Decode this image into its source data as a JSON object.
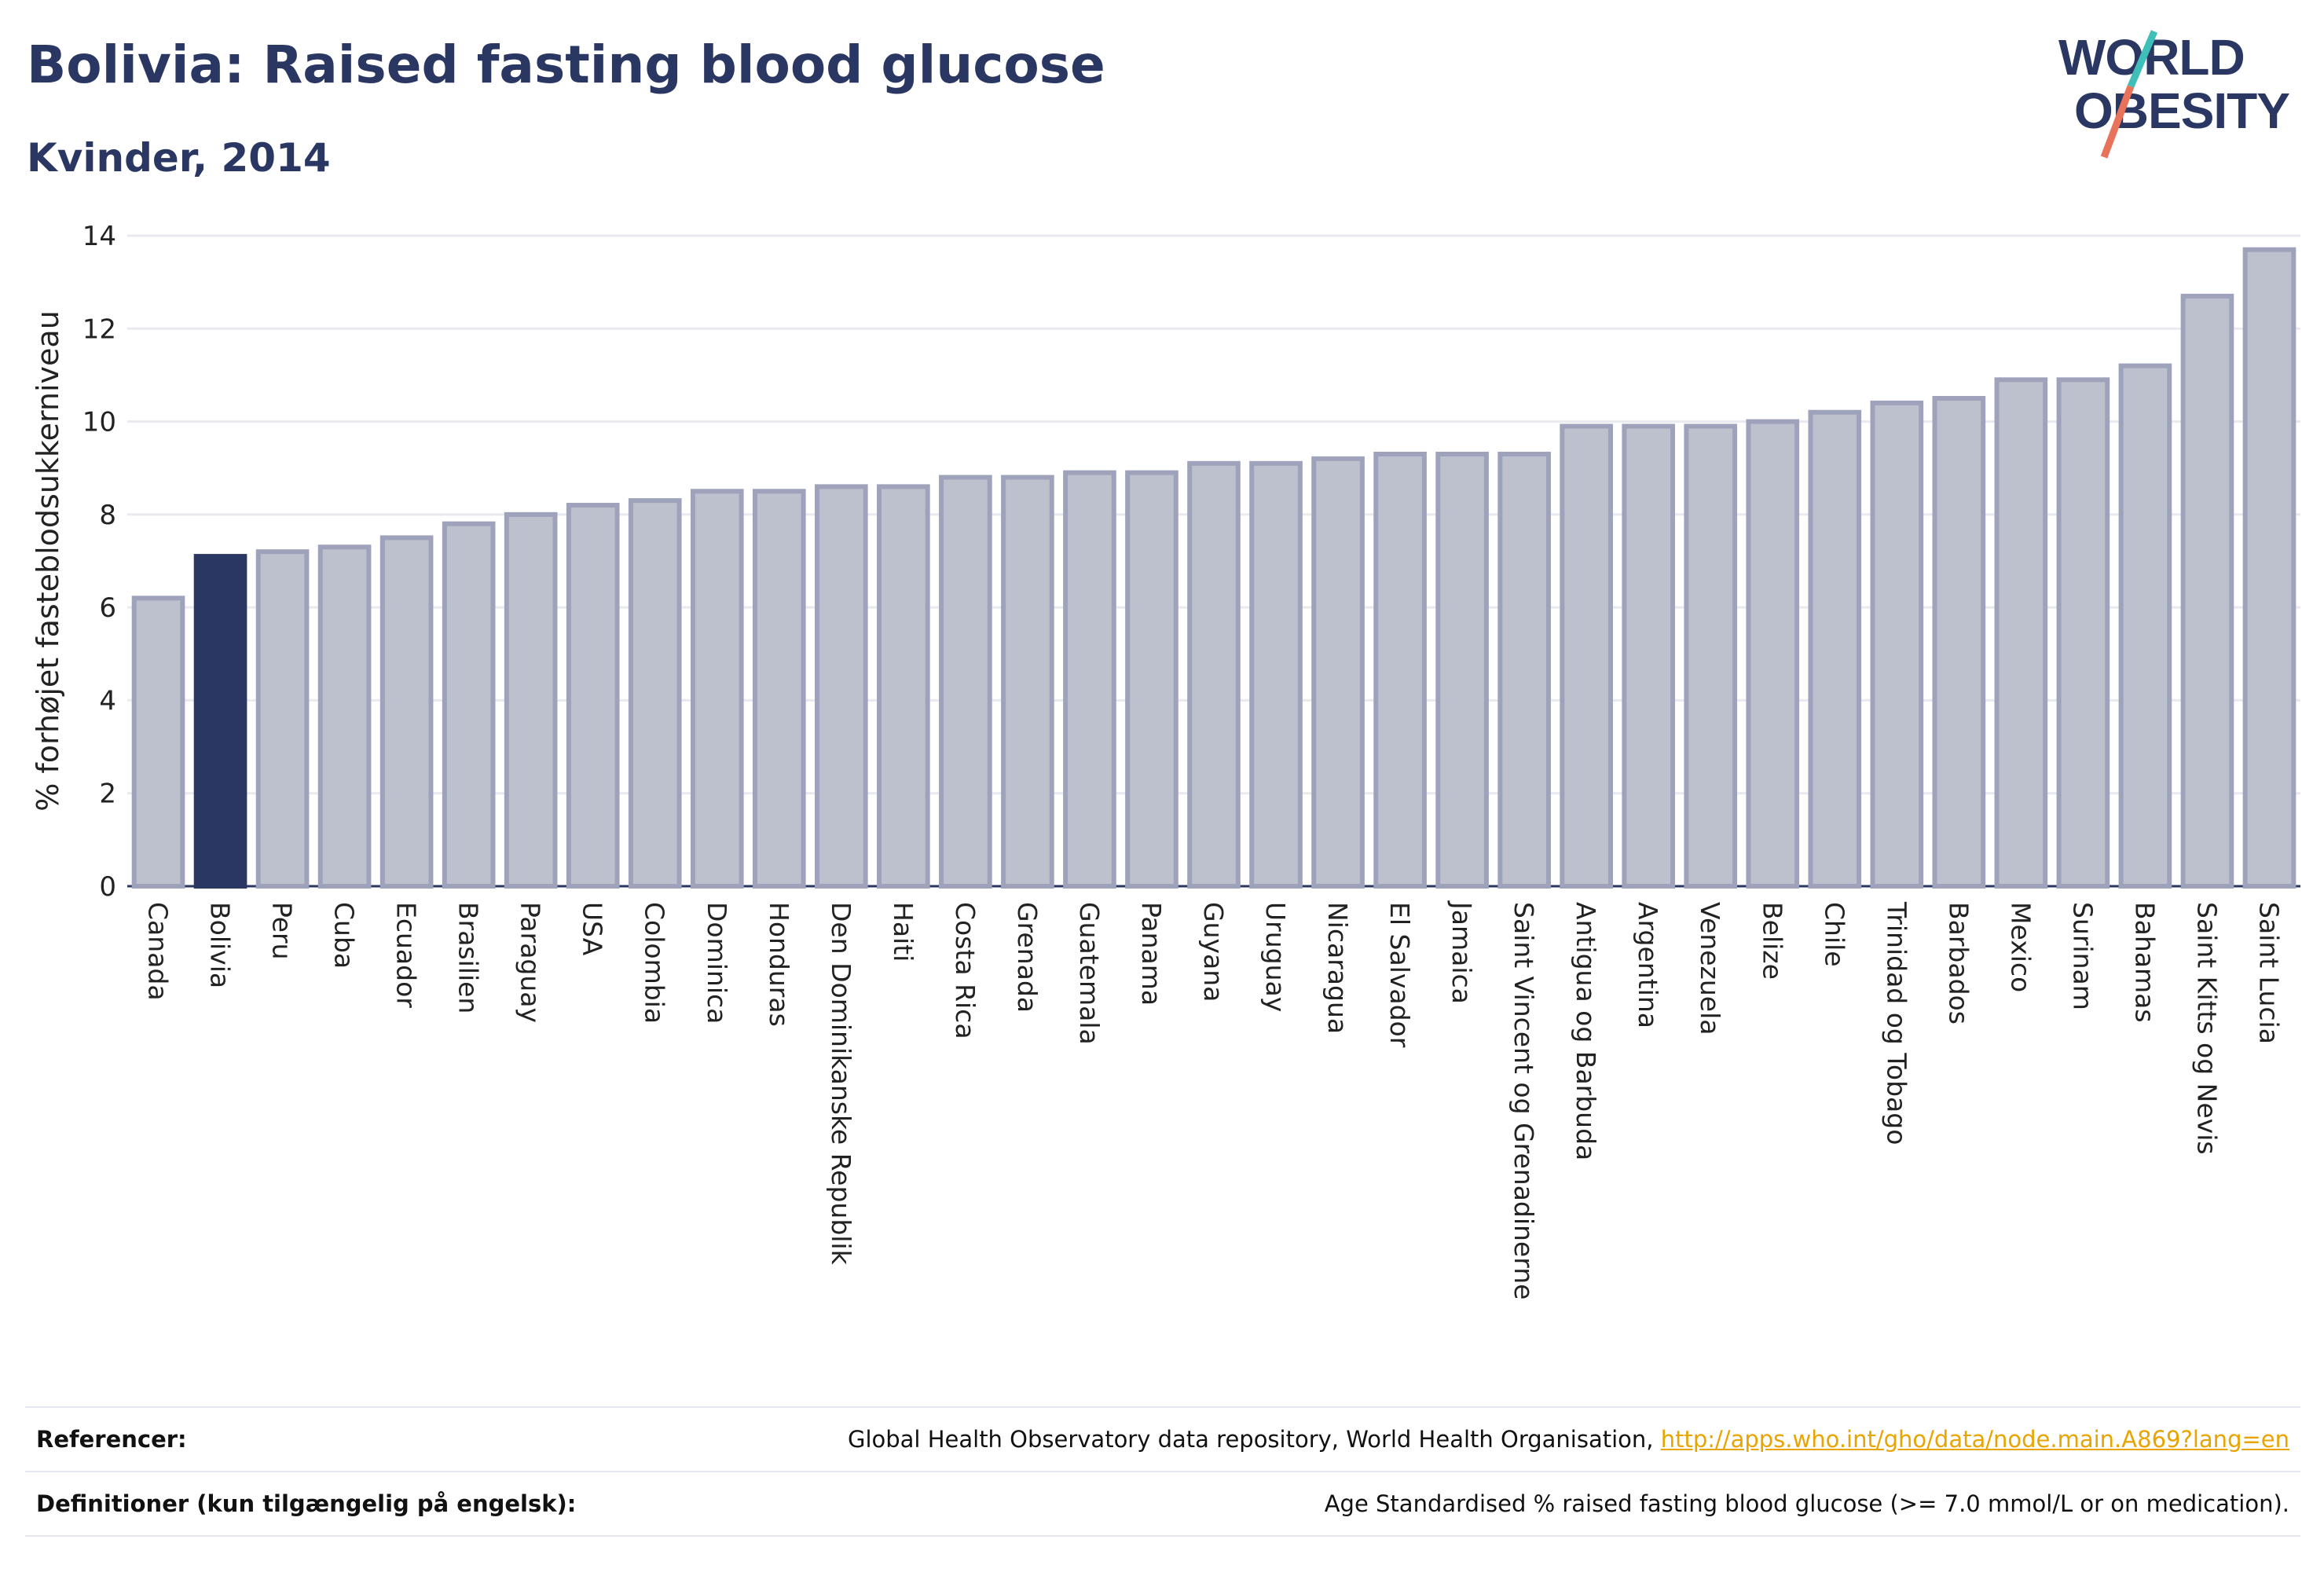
{
  "header": {
    "title": "Bolivia: Raised fasting blood glucose",
    "subtitle": "Kvinder, 2014"
  },
  "logo": {
    "line1": "WORLD",
    "line2": "OBESITY"
  },
  "colors": {
    "highlight": "#2b3763",
    "bar_fill": "#bdc0cd",
    "bar_stroke": "#9ea3bb",
    "grid": "#e8eaf0",
    "logo_text": "#2b3763",
    "logo_slash_teal": "#3fbfb8",
    "logo_slash_red": "#e8735a",
    "link": "#e8a400"
  },
  "chart_data": {
    "type": "bar",
    "ylabel": "% forhøjet fasteblodsukkerniveau",
    "xlabel": "",
    "ylim": [
      0,
      14
    ],
    "yticks": [
      0,
      2,
      4,
      6,
      8,
      10,
      12,
      14
    ],
    "grid": true,
    "highlight_category": "Bolivia",
    "categories": [
      "Canada",
      "Bolivia",
      "Peru",
      "Cuba",
      "Ecuador",
      "Brasilien",
      "Paraguay",
      "USA",
      "Colombia",
      "Dominica",
      "Honduras",
      "Den Dominikanske Republik",
      "Haiti",
      "Costa Rica",
      "Grenada",
      "Guatemala",
      "Panama",
      "Guyana",
      "Uruguay",
      "Nicaragua",
      "El Salvador",
      "Jamaica",
      "Saint Vincent og Grenadinerne",
      "Antigua og Barbuda",
      "Argentina",
      "Venezuela",
      "Belize",
      "Chile",
      "Trinidad og Tobago",
      "Barbados",
      "Mexico",
      "Surinam",
      "Bahamas",
      "Saint Kitts og Nevis",
      "Saint Lucia"
    ],
    "values": [
      6.2,
      7.1,
      7.2,
      7.3,
      7.5,
      7.8,
      8.0,
      8.2,
      8.3,
      8.5,
      8.5,
      8.6,
      8.6,
      8.8,
      8.8,
      8.9,
      8.9,
      9.1,
      9.1,
      9.2,
      9.3,
      9.3,
      9.3,
      9.9,
      9.9,
      9.9,
      10.0,
      10.2,
      10.4,
      10.5,
      10.9,
      10.9,
      11.2,
      12.7,
      13.7
    ]
  },
  "footer": {
    "references_label": "Referencer:",
    "references_text": "Global Health Observatory data repository, World Health Organisation, ",
    "references_link": "http://apps.who.int/gho/data/node.main.A869?lang=en",
    "definitions_label": "Definitioner (kun tilgængelig på engelsk):",
    "definitions_text": "Age Standardised % raised fasting blood glucose (>= 7.0 mmol/L or on medication)."
  }
}
